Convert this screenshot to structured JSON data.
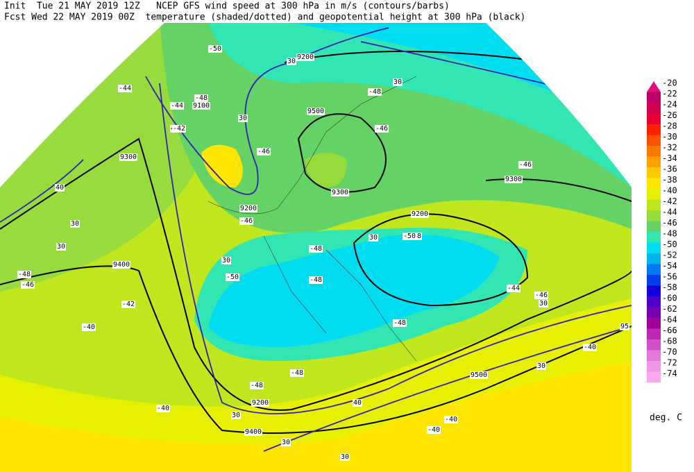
{
  "header": {
    "line1": "Init  Tue 21 MAY 2019 12Z   NCEP GFS wind speed at 300 hPa in m/s (contours/barbs)",
    "line2": "Fcst Wed 22 MAY 2019 00Z  temperature (shaded/dotted) and geopotential height at 300 hPa (black)"
  },
  "legend": {
    "unit": "deg. C",
    "levels": [
      -20,
      -22,
      -24,
      -26,
      -28,
      -30,
      -32,
      -34,
      -36,
      -38,
      -40,
      -42,
      -44,
      -46,
      -48,
      -50,
      -52,
      -54,
      -56,
      -58,
      -60,
      -62,
      -64,
      -66,
      -68,
      -70,
      -72,
      -74
    ],
    "colors": [
      "#e0107a",
      "#c0006a",
      "#d00050",
      "#e80030",
      "#ff2000",
      "#ff5000",
      "#ff7800",
      "#ffa000",
      "#ffc800",
      "#ffe600",
      "#e6f000",
      "#c0e61e",
      "#96dc3c",
      "#64d264",
      "#32e6b4",
      "#00dcf0",
      "#00b4f0",
      "#0078f0",
      "#0040e6",
      "#1400dc",
      "#5000c8",
      "#7800b4",
      "#a0009a",
      "#be28b4",
      "#d250c8",
      "#e678dc",
      "#f096e6",
      "#ffaaf0"
    ]
  },
  "map_labels": [
    "-50",
    "9200",
    "30",
    "-44",
    "-48",
    "9100",
    "-44",
    "40",
    "-42",
    "30",
    "-46",
    "9500",
    "-46",
    "-48",
    "30",
    "9300",
    "40",
    "30",
    "9200",
    "-46",
    "9300",
    "-48",
    "30",
    "-46",
    "9200",
    "30",
    "-50",
    "-48",
    "9400",
    "-48",
    "-46",
    "-48",
    "30",
    "-40",
    "-42",
    "-48",
    "-48",
    "40",
    "9200",
    "30",
    "9500",
    "-40",
    "-40",
    "30",
    "9400",
    "30",
    "-40",
    "9300",
    "-44",
    "-46",
    "30",
    "-48",
    "95",
    "-40",
    "30",
    "-50"
  ]
}
